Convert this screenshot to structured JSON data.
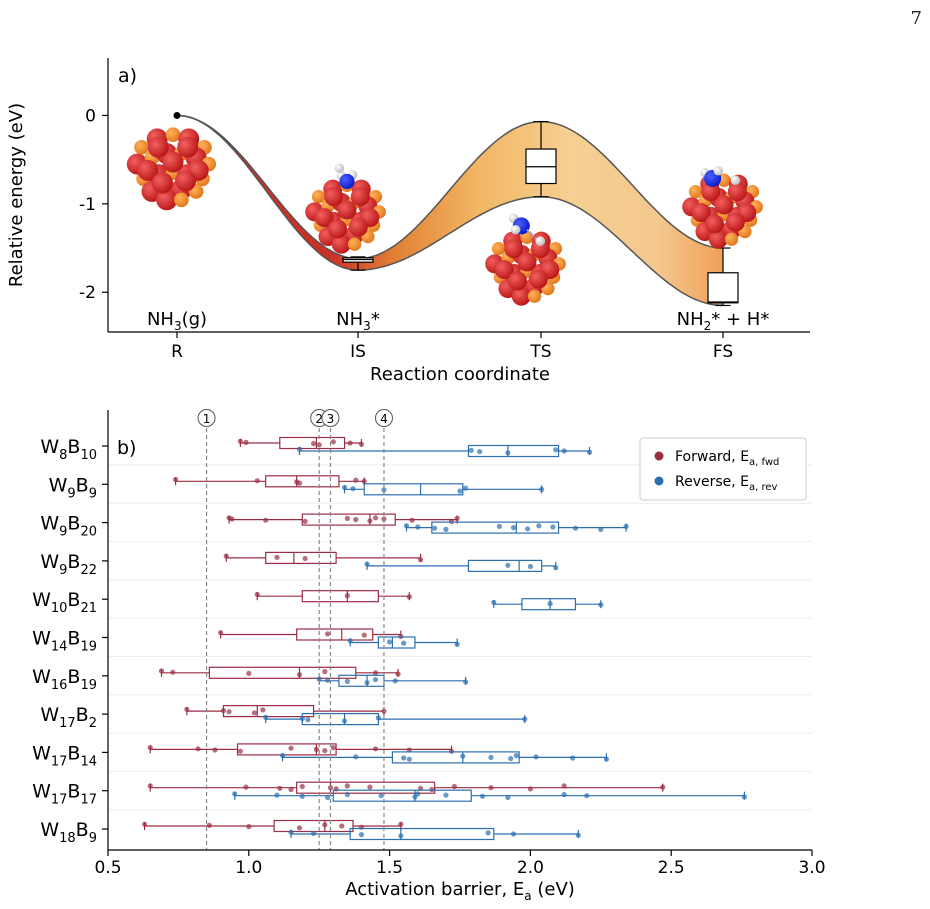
{
  "page": {
    "page_number": "7"
  },
  "chart_data": [
    {
      "type": "line",
      "panel_label": "a)",
      "xlabel": "Reaction coordinate",
      "ylabel": "Relative energy (eV)",
      "categories": [
        "R",
        "IS",
        "TS",
        "FS"
      ],
      "yticks": [
        "0",
        "-1",
        "-2"
      ],
      "ylim": [
        -2.45,
        0.65
      ],
      "state_labels": {
        "R": [
          "NH",
          "3",
          "(g)"
        ],
        "IS": [
          "NH",
          "3",
          "*"
        ],
        "FS": [
          "NH",
          "2",
          "* + H*"
        ]
      },
      "bands": {
        "R": [
          0.0,
          0.0
        ],
        "IS": [
          -1.75,
          -1.62
        ],
        "TS": [
          -0.92,
          -0.07
        ],
        "FS": [
          -2.15,
          -1.5
        ]
      },
      "boxplots": {
        "IS": {
          "min": -1.75,
          "q1": -1.66,
          "median": -1.63,
          "q3": -1.61,
          "max": -1.6
        },
        "TS": {
          "min": -0.92,
          "q1": -0.77,
          "median": -0.58,
          "q3": -0.38,
          "max": -0.07
        },
        "FS": {
          "min": -2.15,
          "q1": -2.12,
          "median": -2.11,
          "q3": -1.78,
          "max": -1.5
        }
      },
      "grid": false
    },
    {
      "type": "boxplot",
      "panel_label": "b)",
      "xlabel": [
        "Activation barrier, E",
        "a",
        " (eV)"
      ],
      "xlim": [
        0.5,
        3.0
      ],
      "xticks": [
        "0.5",
        "1.0",
        "1.5",
        "2.0",
        "2.5",
        "3.0"
      ],
      "reference_lines": [
        {
          "label": "1",
          "x": 0.85
        },
        {
          "label": "2",
          "x": 1.25
        },
        {
          "label": "3",
          "x": 1.29
        },
        {
          "label": "4",
          "x": 1.48
        }
      ],
      "legend_placement": "top-right",
      "series": [
        {
          "name": "Forward, E",
          "sub": "a, fwd",
          "color": "#9b2d45"
        },
        {
          "name": "Reverse, E",
          "sub": "a, rev",
          "color": "#2b6fb0"
        }
      ],
      "rows": [
        {
          "label": [
            "W",
            "8",
            "B",
            "10"
          ],
          "fwd": {
            "min": 0.97,
            "q1": 1.11,
            "median": 1.24,
            "q3": 1.34,
            "max": 1.4,
            "points": [
              0.97,
              0.99,
              1.23,
              1.25,
              1.3,
              1.36,
              1.4
            ]
          },
          "rev": {
            "min": 1.18,
            "q1": 1.78,
            "median": 1.92,
            "q3": 2.1,
            "max": 2.21,
            "points": [
              1.18,
              1.79,
              1.82,
              1.92,
              2.09,
              2.12,
              2.21
            ]
          }
        },
        {
          "label": [
            "W",
            "9",
            "B",
            "9"
          ],
          "fwd": {
            "min": 0.74,
            "q1": 1.06,
            "median": 1.17,
            "q3": 1.32,
            "max": 1.41,
            "points": [
              0.74,
              1.03,
              1.17,
              1.18,
              1.38,
              1.41
            ]
          },
          "rev": {
            "min": 1.34,
            "q1": 1.41,
            "median": 1.61,
            "q3": 1.76,
            "max": 2.04,
            "points": [
              1.34,
              1.37,
              1.48,
              1.75,
              1.77,
              2.04
            ]
          }
        },
        {
          "label": [
            "W",
            "9",
            "B",
            "20"
          ],
          "fwd": {
            "min": 0.93,
            "q1": 1.19,
            "median": 1.43,
            "q3": 1.52,
            "max": 1.74,
            "points": [
              0.93,
              0.94,
              1.06,
              1.2,
              1.35,
              1.38,
              1.43,
              1.45,
              1.48,
              1.58,
              1.72,
              1.74
            ]
          },
          "rev": {
            "min": 1.56,
            "q1": 1.65,
            "median": 1.95,
            "q3": 2.1,
            "max": 2.34,
            "points": [
              1.56,
              1.6,
              1.66,
              1.7,
              1.89,
              1.94,
              1.99,
              2.03,
              2.08,
              2.16,
              2.25,
              2.34
            ]
          }
        },
        {
          "label": [
            "W",
            "9",
            "B",
            "22"
          ],
          "fwd": {
            "min": 0.92,
            "q1": 1.06,
            "median": 1.16,
            "q3": 1.31,
            "max": 1.61,
            "points": [
              0.92,
              1.1,
              1.2,
              1.61
            ]
          },
          "rev": {
            "min": 1.42,
            "q1": 1.78,
            "median": 1.96,
            "q3": 2.04,
            "max": 2.09,
            "points": [
              1.42,
              1.92,
              2.0,
              2.09
            ]
          }
        },
        {
          "label": [
            "W",
            "10",
            "B",
            "21"
          ],
          "fwd": {
            "min": 1.03,
            "q1": 1.19,
            "median": 1.35,
            "q3": 1.46,
            "max": 1.57,
            "points": [
              1.03,
              1.35,
              1.57
            ]
          },
          "rev": {
            "min": 1.87,
            "q1": 1.97,
            "median": 2.07,
            "q3": 2.16,
            "max": 2.25,
            "points": [
              1.87,
              2.07,
              2.25
            ]
          }
        },
        {
          "label": [
            "W",
            "14",
            "B",
            "19"
          ],
          "fwd": {
            "min": 0.9,
            "q1": 1.17,
            "median": 1.33,
            "q3": 1.44,
            "max": 1.54,
            "points": [
              0.9,
              1.28,
              1.41,
              1.54
            ]
          },
          "rev": {
            "min": 1.36,
            "q1": 1.46,
            "median": 1.51,
            "q3": 1.59,
            "max": 1.74,
            "points": [
              1.36,
              1.5,
              1.55,
              1.74
            ]
          }
        },
        {
          "label": [
            "W",
            "16",
            "B",
            "19"
          ],
          "fwd": {
            "min": 0.69,
            "q1": 0.86,
            "median": 1.18,
            "q3": 1.38,
            "max": 1.53,
            "points": [
              0.69,
              0.73,
              1.0,
              1.18,
              1.27,
              1.45,
              1.53
            ]
          },
          "rev": {
            "min": 1.25,
            "q1": 1.32,
            "median": 1.42,
            "q3": 1.48,
            "max": 1.77,
            "points": [
              1.25,
              1.28,
              1.35,
              1.42,
              1.45,
              1.52,
              1.77
            ]
          }
        },
        {
          "label": [
            "W",
            "17",
            "B",
            "2"
          ],
          "fwd": {
            "min": 0.78,
            "q1": 0.91,
            "median": 1.03,
            "q3": 1.23,
            "max": 1.48,
            "points": [
              0.78,
              0.91,
              0.93,
              1.02,
              1.05,
              1.48
            ]
          },
          "rev": {
            "min": 1.06,
            "q1": 1.19,
            "median": 1.34,
            "q3": 1.46,
            "max": 1.98,
            "points": [
              1.06,
              1.19,
              1.21,
              1.34,
              1.46,
              1.98
            ]
          }
        },
        {
          "label": [
            "W",
            "17",
            "B",
            "14"
          ],
          "fwd": {
            "min": 0.65,
            "q1": 0.96,
            "median": 1.24,
            "q3": 1.31,
            "max": 1.72,
            "points": [
              0.65,
              0.82,
              0.88,
              0.97,
              1.15,
              1.24,
              1.27,
              1.3,
              1.45,
              1.57,
              1.72
            ]
          },
          "rev": {
            "min": 1.12,
            "q1": 1.51,
            "median": 1.76,
            "q3": 1.96,
            "max": 2.27,
            "points": [
              1.12,
              1.38,
              1.55,
              1.57,
              1.76,
              1.86,
              1.93,
              1.95,
              2.02,
              2.15,
              2.27
            ]
          }
        },
        {
          "label": [
            "W",
            "17",
            "B",
            "17"
          ],
          "fwd": {
            "min": 0.65,
            "q1": 1.17,
            "median": 1.29,
            "q3": 1.66,
            "max": 2.47,
            "points": [
              0.65,
              0.99,
              1.11,
              1.15,
              1.19,
              1.29,
              1.31,
              1.35,
              1.43,
              1.61,
              1.65,
              1.73,
              1.86,
              2.0,
              2.12,
              2.47
            ]
          },
          "rev": {
            "min": 0.95,
            "q1": 1.3,
            "median": 1.59,
            "q3": 1.79,
            "max": 2.76,
            "points": [
              0.95,
              1.1,
              1.19,
              1.28,
              1.35,
              1.47,
              1.59,
              1.6,
              1.7,
              1.83,
              1.92,
              2.12,
              2.2,
              2.76
            ]
          }
        },
        {
          "label": [
            "W",
            "18",
            "B",
            "9"
          ],
          "fwd": {
            "min": 0.63,
            "q1": 1.09,
            "median": 1.27,
            "q3": 1.37,
            "max": 1.54,
            "points": [
              0.63,
              0.86,
              1.0,
              1.18,
              1.27,
              1.33,
              1.4,
              1.54
            ]
          },
          "rev": {
            "min": 1.15,
            "q1": 1.36,
            "median": 1.54,
            "q3": 1.87,
            "max": 2.17,
            "points": [
              1.15,
              1.23,
              1.4,
              1.54,
              1.85,
              1.94,
              2.17
            ]
          }
        }
      ]
    }
  ]
}
